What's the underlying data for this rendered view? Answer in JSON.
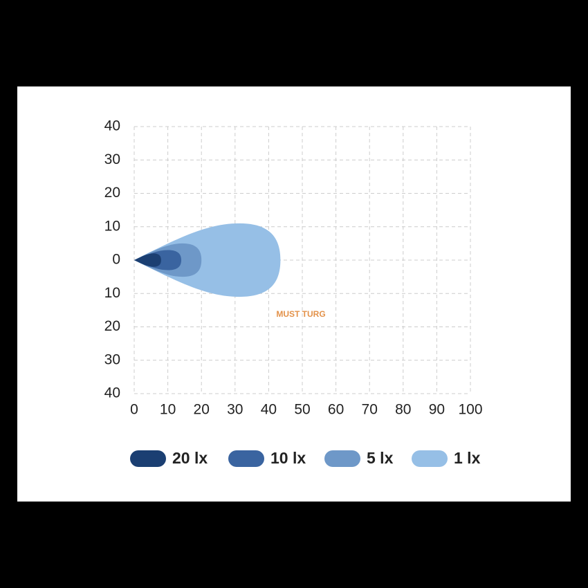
{
  "chart_data": {
    "type": "beam",
    "xlim": [
      0,
      100
    ],
    "xticks": [
      0,
      10,
      20,
      30,
      40,
      50,
      60,
      70,
      80,
      90,
      100
    ],
    "ylim": [
      -40,
      40
    ],
    "yticks": [
      40,
      30,
      20,
      10,
      0,
      {
        "value": -10,
        "label": "10"
      },
      {
        "value": -20,
        "label": "20"
      },
      {
        "value": -30,
        "label": "30"
      },
      {
        "value": -40,
        "label": "40"
      }
    ],
    "grid": true,
    "watermark": "MUST TURG",
    "series": [
      {
        "name": "20 lx",
        "color": "#1b3f72",
        "reach": 8,
        "half_width": 2
      },
      {
        "name": "10 lx",
        "color": "#3a64a0",
        "reach": 14,
        "half_width": 3
      },
      {
        "name": "5 lx",
        "color": "#6e98c8",
        "reach": 20,
        "half_width": 5
      },
      {
        "name": "1 lx",
        "color": "#96bfe6",
        "reach": 43.5,
        "half_width": 11
      }
    ]
  }
}
